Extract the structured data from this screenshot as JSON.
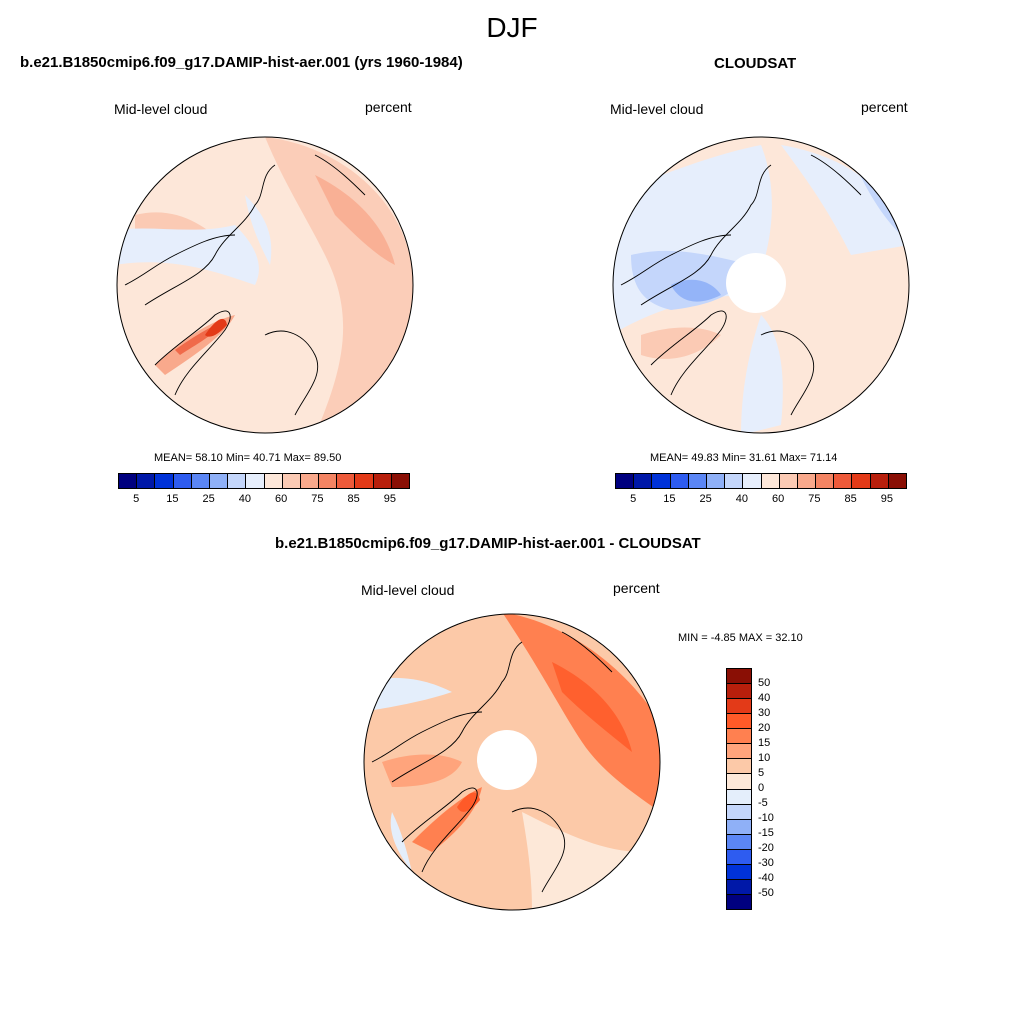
{
  "season": "DJF",
  "panels": {
    "model": {
      "title": "b.e21.B1850cmip6.f09_g17.DAMIP-hist-aer.001 (yrs 1960-1984)",
      "left_label": "Mid-level cloud",
      "right_label": "percent",
      "stats": "MEAN=  58.10  Min=  40.71  Max=  89.50"
    },
    "obs": {
      "title": "CLOUDSAT",
      "left_label": "Mid-level cloud",
      "right_label": "percent",
      "stats": "MEAN=  49.83  Min=  31.61  Max=  71.14"
    },
    "diff": {
      "title": "b.e21.B1850cmip6.f09_g17.DAMIP-hist-aer.001 - CLOUDSAT",
      "left_label": "Mid-level cloud",
      "right_label": "percent",
      "stats": "MIN =  -4.85 MAX =  32.10"
    }
  },
  "colorbar_top": {
    "colors": [
      "#00007f",
      "#0018a8",
      "#0032d8",
      "#2e5cf0",
      "#5b86f5",
      "#8fb0f7",
      "#c4d6fb",
      "#e6eefc",
      "#fde7d9",
      "#fbcab4",
      "#f9a98c",
      "#f48463",
      "#ee5a3a",
      "#e33a18",
      "#b81f0c",
      "#8a0f05"
    ],
    "labels": [
      "5",
      "15",
      "25",
      "40",
      "60",
      "75",
      "85",
      "95"
    ]
  },
  "colorbar_diff": {
    "colors": [
      "#8a0f05",
      "#b81f0c",
      "#e33a18",
      "#ff5a28",
      "#ff8050",
      "#ffa47c",
      "#fcc9a8",
      "#fde8d8",
      "#e4eefb",
      "#c4d6fb",
      "#8fb0f7",
      "#5b86f5",
      "#2e5cf0",
      "#0032d8",
      "#0018a8",
      "#00007f"
    ],
    "labels": [
      "50",
      "40",
      "30",
      "20",
      "15",
      "10",
      "5",
      "0",
      "-5",
      "-10",
      "-15",
      "-20",
      "-30",
      "-40",
      "-50"
    ]
  }
}
